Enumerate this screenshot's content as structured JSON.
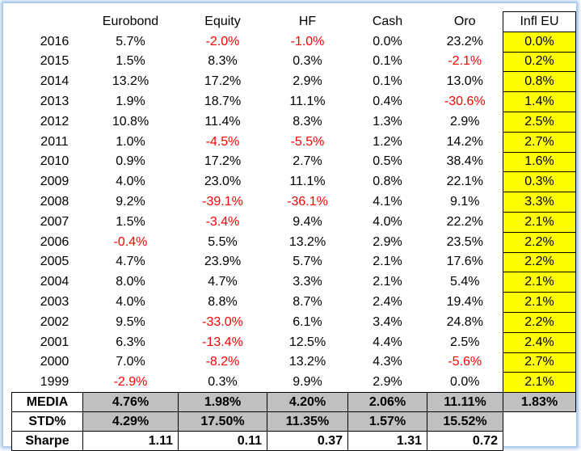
{
  "headers": [
    "",
    "Eurobond",
    "Equity",
    "HF",
    "Cash",
    "Oro",
    "Infl EU"
  ],
  "rows": [
    {
      "year": "2016",
      "values": [
        "5.7%",
        "-2.0%",
        "-1.0%",
        "0.0%",
        "23.2%",
        "0.0%"
      ]
    },
    {
      "year": "2015",
      "values": [
        "1.5%",
        "8.3%",
        "0.3%",
        "0.1%",
        "-2.1%",
        "0.2%"
      ]
    },
    {
      "year": "2014",
      "values": [
        "13.2%",
        "17.2%",
        "2.9%",
        "0.1%",
        "13.0%",
        "0.8%"
      ]
    },
    {
      "year": "2013",
      "values": [
        "1.9%",
        "18.7%",
        "11.1%",
        "0.4%",
        "-30.6%",
        "1.4%"
      ]
    },
    {
      "year": "2012",
      "values": [
        "10.8%",
        "11.4%",
        "8.3%",
        "1.3%",
        "2.9%",
        "2.5%"
      ]
    },
    {
      "year": "2011",
      "values": [
        "1.0%",
        "-4.5%",
        "-5.5%",
        "1.2%",
        "14.2%",
        "2.7%"
      ]
    },
    {
      "year": "2010",
      "values": [
        "0.9%",
        "17.2%",
        "2.7%",
        "0.5%",
        "38.4%",
        "1.6%"
      ]
    },
    {
      "year": "2009",
      "values": [
        "4.0%",
        "23.0%",
        "11.1%",
        "0.8%",
        "22.1%",
        "0.3%"
      ]
    },
    {
      "year": "2008",
      "values": [
        "9.2%",
        "-39.1%",
        "-36.1%",
        "4.1%",
        "9.1%",
        "3.3%"
      ]
    },
    {
      "year": "2007",
      "values": [
        "1.5%",
        "-3.4%",
        "9.4%",
        "4.0%",
        "22.2%",
        "2.1%"
      ]
    },
    {
      "year": "2006",
      "values": [
        "-0.4%",
        "5.5%",
        "13.2%",
        "2.9%",
        "23.5%",
        "2.2%"
      ]
    },
    {
      "year": "2005",
      "values": [
        "4.7%",
        "23.9%",
        "5.7%",
        "2.1%",
        "17.6%",
        "2.2%"
      ]
    },
    {
      "year": "2004",
      "values": [
        "8.0%",
        "4.7%",
        "3.3%",
        "2.1%",
        "5.4%",
        "2.1%"
      ]
    },
    {
      "year": "2003",
      "values": [
        "4.0%",
        "8.8%",
        "8.7%",
        "2.4%",
        "19.4%",
        "2.1%"
      ]
    },
    {
      "year": "2002",
      "values": [
        "9.5%",
        "-33.0%",
        "6.1%",
        "3.4%",
        "24.8%",
        "2.2%"
      ]
    },
    {
      "year": "2001",
      "values": [
        "6.3%",
        "-13.4%",
        "12.5%",
        "4.4%",
        "2.5%",
        "2.4%"
      ]
    },
    {
      "year": "2000",
      "values": [
        "7.0%",
        "-8.2%",
        "13.2%",
        "4.3%",
        "-5.6%",
        "2.7%"
      ]
    },
    {
      "year": "1999",
      "values": [
        "-2.9%",
        "0.3%",
        "9.9%",
        "2.9%",
        "0.0%",
        "2.1%"
      ]
    }
  ],
  "summary": {
    "media": {
      "label": "MEDIA",
      "values": [
        "4.76%",
        "1.98%",
        "4.20%",
        "2.06%",
        "11.11%",
        "1.83%"
      ]
    },
    "std": {
      "label": "STD%",
      "values": [
        "4.29%",
        "17.50%",
        "11.35%",
        "1.57%",
        "15.52%"
      ]
    },
    "sharpe": {
      "label": "Sharpe",
      "values": [
        "1.11",
        "0.11",
        "0.37",
        "1.31",
        "0.72"
      ]
    }
  },
  "colors": {
    "negative": "#ff0000",
    "inflation_bg": "#ffff00",
    "summary_gray": "#c0c0c0",
    "frame_glow": "#9fc3e8"
  }
}
